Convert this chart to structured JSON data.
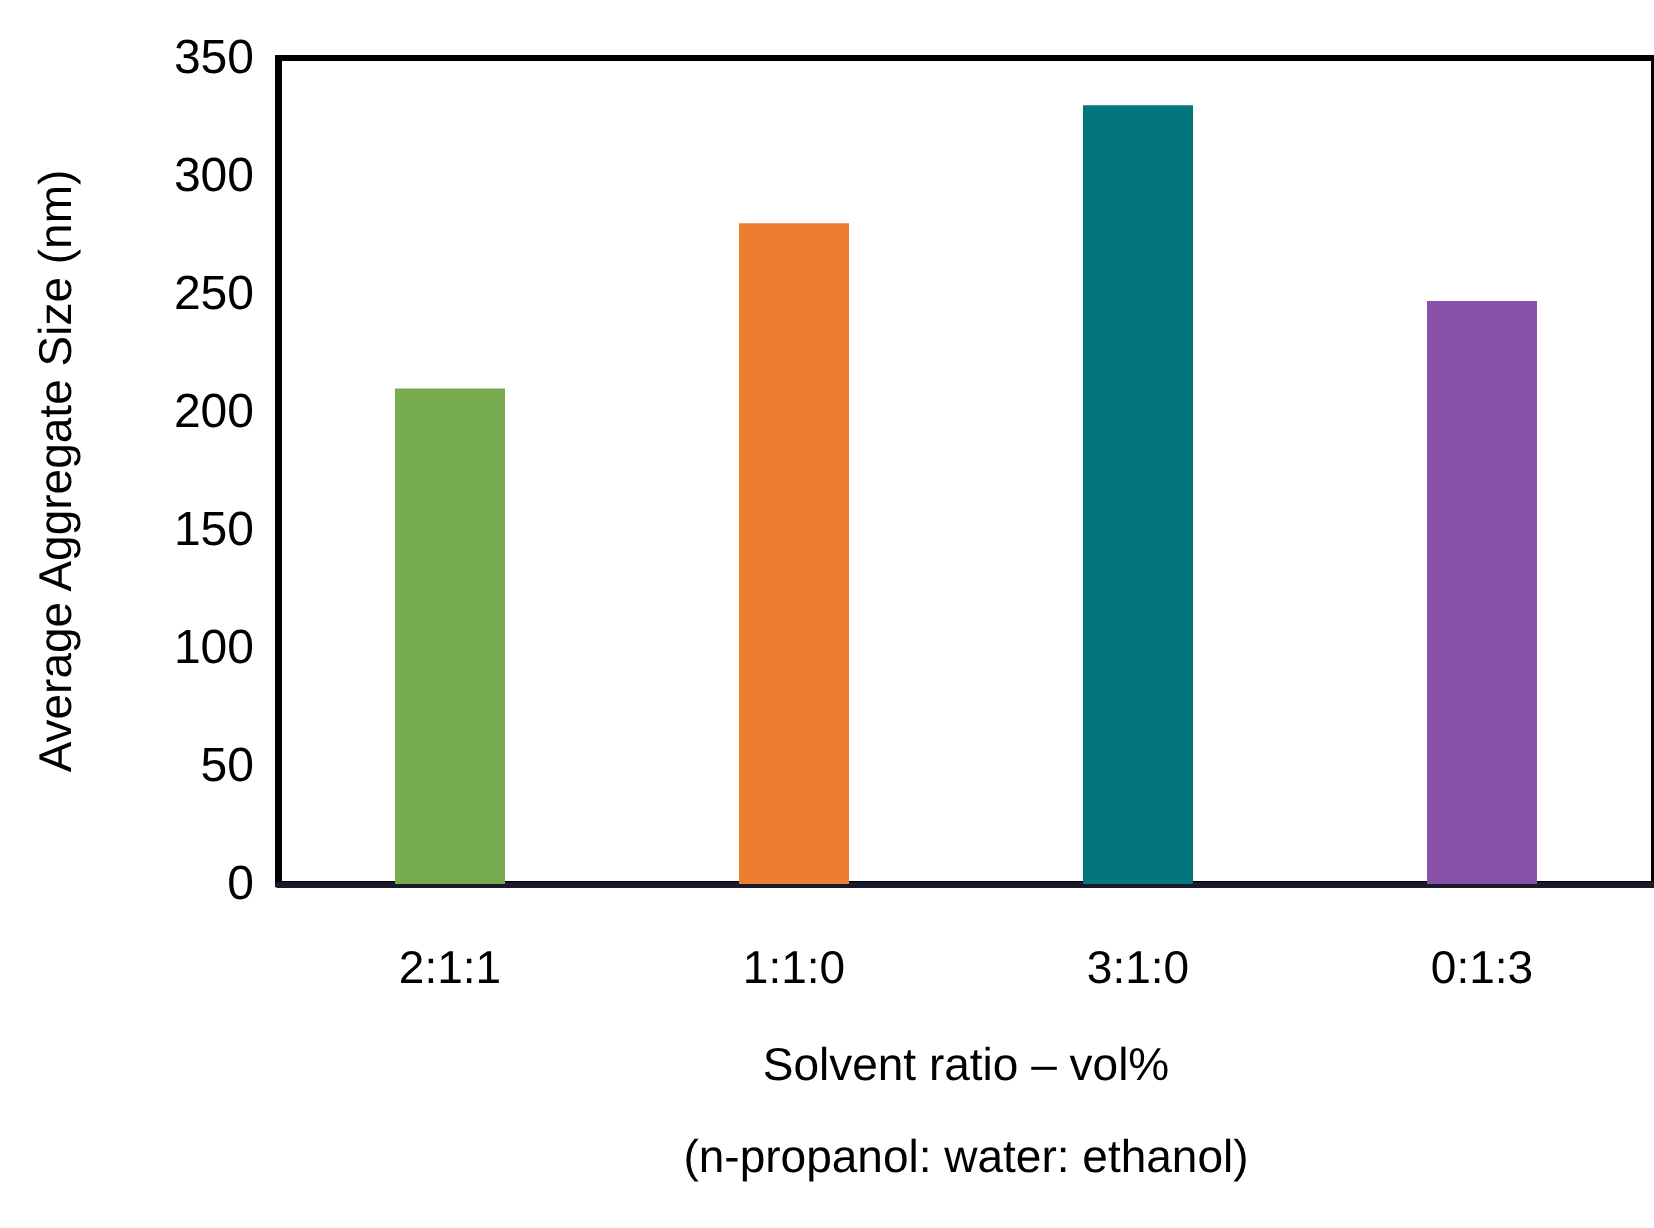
{
  "chart_data": {
    "type": "bar",
    "xlabel": "Solvent ratio – vol%\n(n-propanol: water: ethanol)",
    "ylabel": "Average Aggregate Size (nm)",
    "categories": [
      "2:1:1",
      "1:1:0",
      "3:1:0",
      "0:1:3"
    ],
    "values": [
      210,
      280,
      330,
      247
    ],
    "colors": [
      "#77ab50",
      "#ed7d31",
      "#02757d",
      "#8751a8"
    ],
    "ylim": [
      0,
      350
    ],
    "yticks": [
      0,
      50,
      100,
      150,
      200,
      250,
      300,
      350
    ]
  }
}
